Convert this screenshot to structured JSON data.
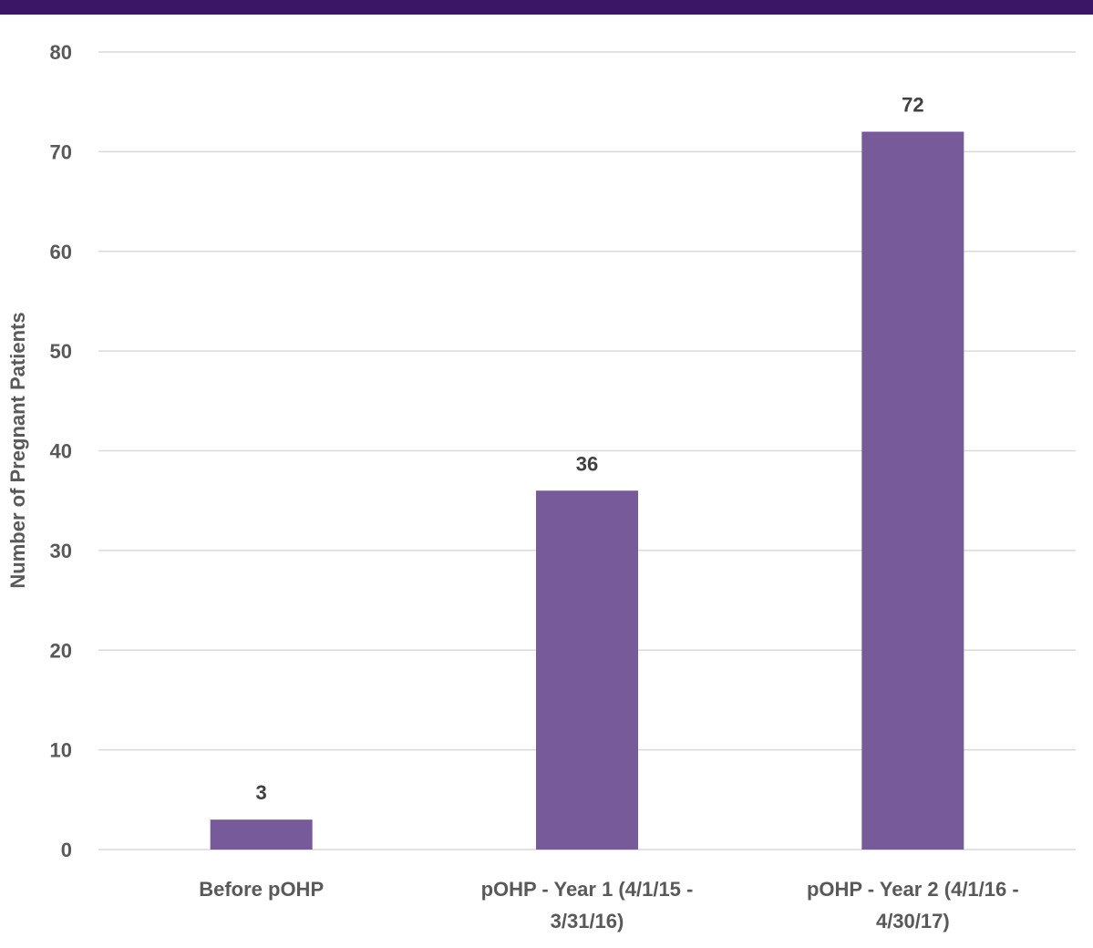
{
  "header": {
    "bar_color": "#3b1566"
  },
  "chart_data": {
    "type": "bar",
    "categories": [
      "Before pOHP",
      "pOHP - Year 1 (4/1/15 - 3/31/16)",
      "pOHP - Year 2 (4/1/16 - 4/30/17)"
    ],
    "category_lines": [
      [
        "Before pOHP"
      ],
      [
        "pOHP - Year 1 (4/1/15 -",
        "3/31/16)"
      ],
      [
        "pOHP - Year 2 (4/1/16 -",
        "4/30/17)"
      ]
    ],
    "values": [
      3,
      36,
      72
    ],
    "data_labels": [
      "3",
      "36",
      "72"
    ],
    "title": "",
    "xlabel": "",
    "ylabel": "Number of Pregnant Patients",
    "ylim": [
      0,
      80
    ],
    "yticks": [
      0,
      10,
      20,
      30,
      40,
      50,
      60,
      70,
      80
    ],
    "grid": true,
    "legend": "none",
    "bar_color": "#775a9a",
    "grid_color": "#d9d9d9"
  }
}
